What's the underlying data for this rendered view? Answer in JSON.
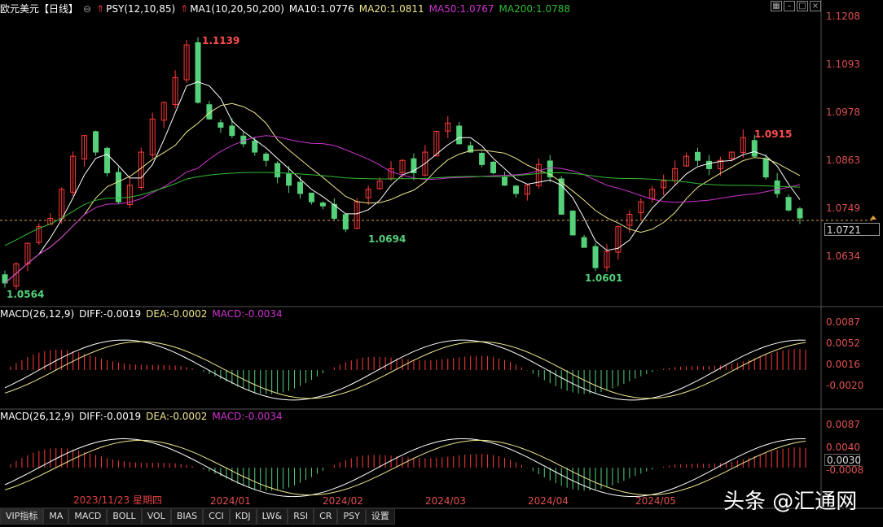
{
  "header": {
    "symbol": "欧元美元",
    "period": "【日线】",
    "psy": "PSY(12,10,85)",
    "ma_def": "MA1(10,20,50,200)",
    "ma10": "MA10:1.0776",
    "ma20": "MA20:1.0811",
    "ma50": "MA50:1.0767",
    "ma200": "MA200:1.0788"
  },
  "macd1": {
    "name": "MACD(26,12,9)",
    "diff": "DIFF:-0.0019",
    "dea": "DEA:-0.0002",
    "macd": "MACD:-0.0034"
  },
  "macd2": {
    "name": "MACD(26,12,9)",
    "diff": "DIFF:-0.0019",
    "dea": "DEA:-0.0002",
    "macd": "MACD:-0.0034"
  },
  "price_axis": [
    "1.1208",
    "1.1093",
    "1.0978",
    "1.0863",
    "1.0749",
    "1.0634"
  ],
  "macd1_axis": [
    "0.0087",
    "0.0052",
    "0.0016",
    "-0.0020"
  ],
  "macd2_axis": [
    "0.0087",
    "0.0040",
    "-0.0008"
  ],
  "current_price": "1.0721",
  "macd2_current": "0.0030",
  "annotations": {
    "high": "1.1139",
    "low1": "1.0564",
    "low2": "1.0694",
    "low3": "1.0601",
    "high2": "1.0915"
  },
  "date_labels": [
    "2024/01",
    "2024/02",
    "2024/03",
    "2024/04",
    "2024/05"
  ],
  "crosshair_date": "2023/11/23 星期四",
  "tabs": [
    "VIP指标",
    "MA",
    "MACD",
    "BOLL",
    "VOL",
    "BIAS",
    "CCI",
    "KDJ",
    "LW&",
    "RSI",
    "CR",
    "PSY",
    "设置"
  ],
  "watermark": "头条 @汇通网",
  "colors": {
    "up": "#ff3a3a",
    "down": "#54d17a",
    "ma10": "#ffffff",
    "ma20": "#f0e68c",
    "ma50": "#cc33cc",
    "ma200": "#33bb33",
    "text_red": "#ff4d4d",
    "text_green": "#54d17a"
  },
  "chart_data": {
    "type": "candlestick",
    "ylim": [
      1.056,
      1.121
    ],
    "candles_approx_close": [
      1.0564,
      1.061,
      1.066,
      1.07,
      1.072,
      1.079,
      1.087,
      1.092,
      1.088,
      1.083,
      1.076,
      1.08,
      1.088,
      1.096,
      1.1,
      1.106,
      1.1139,
      1.1,
      1.096,
      1.094,
      1.092,
      1.09,
      1.088,
      1.086,
      1.082,
      1.08,
      1.078,
      1.076,
      1.075,
      1.072,
      1.0694,
      1.076,
      1.079,
      1.081,
      1.084,
      1.086,
      1.083,
      1.088,
      1.093,
      1.095,
      1.09,
      1.088,
      1.085,
      1.083,
      1.08,
      1.078,
      1.08,
      1.085,
      1.082,
      1.073,
      1.068,
      1.065,
      1.0601,
      1.064,
      1.07,
      1.073,
      1.076,
      1.079,
      1.081,
      1.084,
      1.087,
      1.086,
      1.084,
      1.086,
      1.088,
      1.0915,
      1.087,
      1.082,
      1.078,
      1.074,
      1.0721
    ],
    "ma": {
      "MA10": 1.0776,
      "MA20": 1.0811,
      "MA50": 1.0767,
      "MA200": 1.0788
    }
  }
}
